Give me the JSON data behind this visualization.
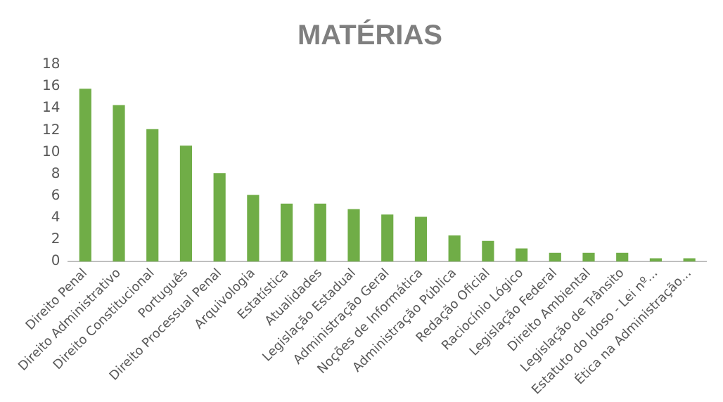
{
  "chart_data": {
    "type": "bar",
    "title": "MATÉRIAS",
    "categories": [
      "Direito Penal",
      "Direito Administrativo",
      "Direito Constitucional",
      "Português",
      "Direito Processual Penal",
      "Arquivologia",
      "Estatística",
      "Atualidades",
      "Legislação Estadual",
      "Administração Geral",
      "Noções de Informática",
      "Administração Pública",
      "Redação Oficial",
      "Raciocínio Lógico",
      "Legislação Federal",
      "Direito Ambiental",
      "Legislação de Trânsito",
      "Estatuto do Idoso - Lei nº...",
      "Ética na Administração..."
    ],
    "values": [
      15.8,
      14.3,
      12.1,
      10.6,
      8.1,
      6.1,
      5.3,
      5.3,
      4.8,
      4.3,
      4.1,
      2.4,
      1.9,
      1.2,
      0.8,
      0.8,
      0.8,
      0.3,
      0.3
    ],
    "color": "#70ad47",
    "ylim": [
      0,
      18
    ],
    "yticks": [
      0,
      2,
      4,
      6,
      8,
      10,
      12,
      14,
      16,
      18
    ],
    "grid": false,
    "legend": false
  }
}
